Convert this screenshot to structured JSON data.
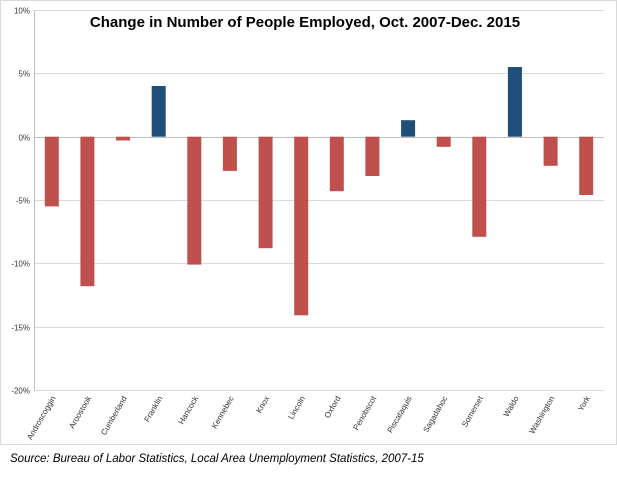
{
  "chart_data": {
    "type": "bar",
    "title": "Change in Number of People Employed, Oct. 2007-Dec. 2015",
    "xlabel": "",
    "ylabel": "",
    "ylim": [
      -20,
      10
    ],
    "yticks": [
      10,
      5,
      0,
      -5,
      -10,
      -15,
      -20
    ],
    "ytick_labels": [
      "10%",
      "5%",
      "0%",
      "-5%",
      "-10%",
      "-15%",
      "-20%"
    ],
    "grid": true,
    "legend": "none",
    "categories": [
      "Androscoggin",
      "Aroostook",
      "Cumberland",
      "Franklin",
      "Hancock",
      "Kennebec",
      "Knox",
      "Lincoln",
      "Oxford",
      "Penobscot",
      "Piscataquis",
      "Sagadahoc",
      "Somerset",
      "Waldo",
      "Washington",
      "York"
    ],
    "values": [
      -5.5,
      -11.8,
      -0.3,
      4.0,
      -10.1,
      -2.7,
      -8.8,
      -14.1,
      -4.3,
      -3.1,
      1.3,
      -0.8,
      -7.9,
      5.5,
      -2.3,
      -4.6
    ],
    "colors": {
      "positive": "#1f4e79",
      "negative": "#c0504d",
      "grid": "#d9d9d9",
      "axis": "#bfbfbf"
    }
  },
  "source_note": "Source: Bureau of Labor Statistics, Local Area Unemployment Statistics, 2007-15"
}
